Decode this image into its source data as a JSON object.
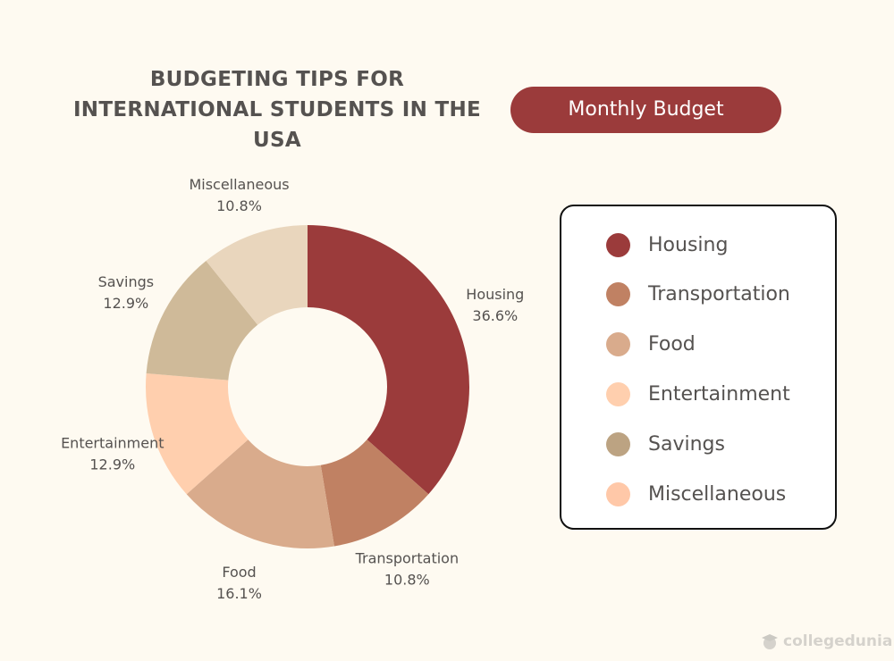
{
  "header": {
    "title_lines": [
      "BUDGETING TIPS FOR",
      "INTERNATIONAL STUDENTS IN THE",
      "USA"
    ],
    "badge_label": "Monthly Budget"
  },
  "colors": {
    "badge": "#9b3b3b",
    "title": "#555250",
    "background": "#fefaf1"
  },
  "chart_data": {
    "type": "pie",
    "title": "BUDGETING TIPS FOR INTERNATIONAL STUDENTS IN THE USA",
    "donut": true,
    "legend_position": "right",
    "slices": [
      {
        "name": "Housing",
        "value": 36.6,
        "label": "36.6%",
        "color": "#9b3b3b"
      },
      {
        "name": "Transportation",
        "value": 10.8,
        "label": "10.8%",
        "color": "#c08163"
      },
      {
        "name": "Food",
        "value": 16.1,
        "label": "16.1%",
        "color": "#d9ab8c"
      },
      {
        "name": "Entertainment",
        "value": 12.9,
        "label": "12.9%",
        "color": "#ffcfae"
      },
      {
        "name": "Savings",
        "value": 12.9,
        "label": "12.9%",
        "color": "#cfba99"
      },
      {
        "name": "Miscellaneous",
        "value": 10.8,
        "label": "10.8%",
        "color": "#e9d6bd"
      }
    ]
  },
  "legend": {
    "items": [
      {
        "label": "Housing",
        "color": "#9b3b3b"
      },
      {
        "label": "Transportation",
        "color": "#c08163"
      },
      {
        "label": "Food",
        "color": "#d9ab8c"
      },
      {
        "label": "Entertainment",
        "color": "#ffcfae"
      },
      {
        "label": "Savings",
        "color": "#bca382"
      },
      {
        "label": "Miscellaneous",
        "color": "#ffc8a8"
      }
    ]
  },
  "watermark": {
    "text": "collegedunia",
    "icon": "graduate-icon"
  }
}
